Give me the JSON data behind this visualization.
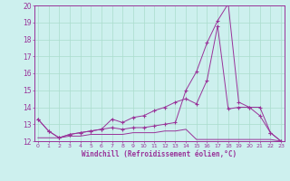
{
  "xlabel": "Windchill (Refroidissement éolien,°C)",
  "bg_color": "#cdf0ee",
  "line_color": "#993399",
  "grid_color": "#aaddcc",
  "x_values": [
    0,
    1,
    2,
    3,
    4,
    5,
    6,
    7,
    8,
    9,
    10,
    11,
    12,
    13,
    14,
    15,
    16,
    17,
    18,
    19,
    20,
    21,
    22,
    23
  ],
  "line1_upper": [
    13.3,
    12.6,
    12.2,
    12.4,
    12.5,
    12.6,
    12.7,
    12.8,
    12.7,
    12.8,
    12.8,
    12.9,
    13.0,
    13.1,
    15.0,
    16.1,
    17.8,
    19.1,
    20.1,
    14.3,
    14.0,
    14.0,
    12.5,
    12.0
  ],
  "line2_mid": [
    13.3,
    12.6,
    12.2,
    12.4,
    12.5,
    12.6,
    12.7,
    13.3,
    13.1,
    13.4,
    13.5,
    13.8,
    14.0,
    14.3,
    14.5,
    14.2,
    15.6,
    18.8,
    13.9,
    14.0,
    14.0,
    13.5,
    12.5,
    12.0
  ],
  "line3_flat": [
    12.2,
    12.2,
    12.2,
    12.3,
    12.3,
    12.4,
    12.4,
    12.4,
    12.4,
    12.5,
    12.5,
    12.5,
    12.6,
    12.6,
    12.7,
    12.1,
    12.1,
    12.1,
    12.1,
    12.1,
    12.1,
    12.1,
    12.1,
    12.0
  ],
  "ylim_min": 12,
  "ylim_max": 20,
  "yticks": [
    12,
    13,
    14,
    15,
    16,
    17,
    18,
    19,
    20
  ],
  "xticks": [
    0,
    1,
    2,
    3,
    4,
    5,
    6,
    7,
    8,
    9,
    10,
    11,
    12,
    13,
    14,
    15,
    16,
    17,
    18,
    19,
    20,
    21,
    22,
    23
  ]
}
